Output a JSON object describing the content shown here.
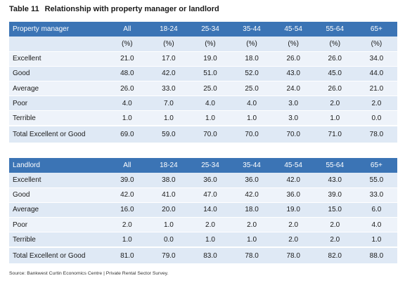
{
  "title": {
    "number": "Table 11",
    "text": "Relationship with property manager or landlord"
  },
  "columns": [
    "All",
    "18-24",
    "25-34",
    "35-44",
    "45-54",
    "55-64",
    "65+"
  ],
  "units": [
    "(%)",
    "(%)",
    "(%)",
    "(%)",
    "(%)",
    "(%)",
    "(%)"
  ],
  "property_manager": {
    "header": "Property manager",
    "rows": [
      {
        "label": "Excellent",
        "values": [
          "21.0",
          "17.0",
          "19.0",
          "18.0",
          "26.0",
          "26.0",
          "34.0"
        ]
      },
      {
        "label": "Good",
        "values": [
          "48.0",
          "42.0",
          "51.0",
          "52.0",
          "43.0",
          "45.0",
          "44.0"
        ]
      },
      {
        "label": "Average",
        "values": [
          "26.0",
          "33.0",
          "25.0",
          "25.0",
          "24.0",
          "26.0",
          "21.0"
        ]
      },
      {
        "label": "Poor",
        "values": [
          "4.0",
          "7.0",
          "4.0",
          "4.0",
          "3.0",
          "2.0",
          "2.0"
        ]
      },
      {
        "label": "Terrible",
        "values": [
          "1.0",
          "1.0",
          "1.0",
          "1.0",
          "3.0",
          "1.0",
          "0.0"
        ]
      }
    ],
    "total": {
      "label": "Total Excellent or Good",
      "values": [
        "69.0",
        "59.0",
        "70.0",
        "70.0",
        "70.0",
        "71.0",
        "78.0"
      ]
    }
  },
  "landlord": {
    "header": "Landlord",
    "rows": [
      {
        "label": "Excellent",
        "values": [
          "39.0",
          "38.0",
          "36.0",
          "36.0",
          "42.0",
          "43.0",
          "55.0"
        ]
      },
      {
        "label": "Good",
        "values": [
          "42.0",
          "41.0",
          "47.0",
          "42.0",
          "36.0",
          "39.0",
          "33.0"
        ]
      },
      {
        "label": "Average",
        "values": [
          "16.0",
          "20.0",
          "14.0",
          "18.0",
          "19.0",
          "15.0",
          "6.0"
        ]
      },
      {
        "label": "Poor",
        "values": [
          "2.0",
          "1.0",
          "2.0",
          "2.0",
          "2.0",
          "2.0",
          "4.0"
        ]
      },
      {
        "label": "Terrible",
        "values": [
          "1.0",
          "0.0",
          "1.0",
          "1.0",
          "2.0",
          "2.0",
          "1.0"
        ]
      }
    ],
    "total": {
      "label": "Total Excellent or Good",
      "values": [
        "81.0",
        "79.0",
        "83.0",
        "78.0",
        "78.0",
        "82.0",
        "88.0"
      ]
    }
  },
  "source": "Source:   Bankwest Curtin Economics Centre | Private Rental Sector Survey."
}
